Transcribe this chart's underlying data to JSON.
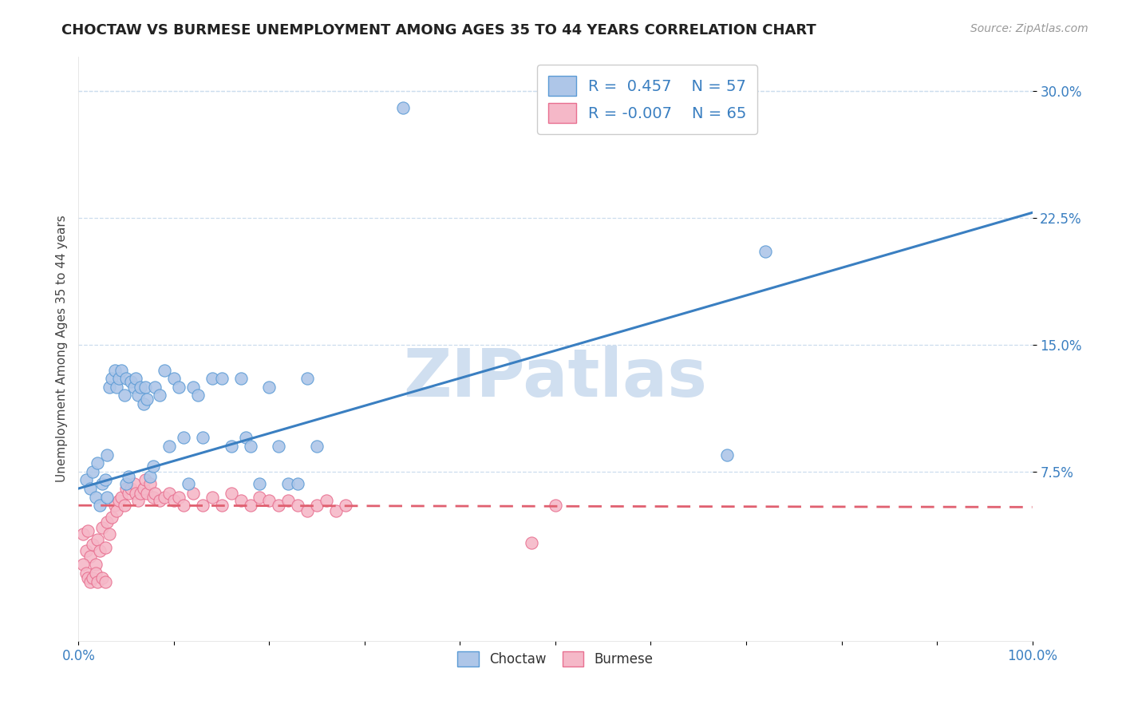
{
  "title": "CHOCTAW VS BURMESE UNEMPLOYMENT AMONG AGES 35 TO 44 YEARS CORRELATION CHART",
  "source": "Source: ZipAtlas.com",
  "ylabel": "Unemployment Among Ages 35 to 44 years",
  "xlim": [
    0,
    1.0
  ],
  "ylim": [
    -0.025,
    0.32
  ],
  "ytick_positions": [
    0.075,
    0.15,
    0.225,
    0.3
  ],
  "yticklabels": [
    "7.5%",
    "15.0%",
    "22.5%",
    "30.0%"
  ],
  "choctaw_color": "#aec6e8",
  "burmese_color": "#f5b8c8",
  "choctaw_edge_color": "#5b9bd5",
  "burmese_edge_color": "#e87090",
  "choctaw_line_color": "#3a7fc1",
  "burmese_line_color": "#e06070",
  "choctaw_R": 0.457,
  "choctaw_N": 57,
  "burmese_R": -0.007,
  "burmese_N": 65,
  "watermark": "ZIPatlas",
  "watermark_color": "#d0dff0",
  "choctaw_line_x0": 0.0,
  "choctaw_line_y0": 0.065,
  "choctaw_line_x1": 1.0,
  "choctaw_line_y1": 0.228,
  "burmese_line_x0": 0.0,
  "burmese_line_y0": 0.055,
  "burmese_line_x1": 1.0,
  "burmese_line_y1": 0.054,
  "choctaw_x": [
    0.008,
    0.012,
    0.015,
    0.018,
    0.02,
    0.022,
    0.025,
    0.028,
    0.03,
    0.03,
    0.032,
    0.035,
    0.038,
    0.04,
    0.042,
    0.045,
    0.048,
    0.05,
    0.05,
    0.052,
    0.055,
    0.058,
    0.06,
    0.062,
    0.065,
    0.068,
    0.07,
    0.072,
    0.075,
    0.078,
    0.08,
    0.085,
    0.09,
    0.095,
    0.1,
    0.105,
    0.11,
    0.115,
    0.12,
    0.125,
    0.13,
    0.14,
    0.15,
    0.16,
    0.17,
    0.175,
    0.18,
    0.19,
    0.2,
    0.21,
    0.22,
    0.23,
    0.24,
    0.25,
    0.68,
    0.72,
    0.34
  ],
  "choctaw_y": [
    0.07,
    0.065,
    0.075,
    0.06,
    0.08,
    0.055,
    0.068,
    0.07,
    0.085,
    0.06,
    0.125,
    0.13,
    0.135,
    0.125,
    0.13,
    0.135,
    0.12,
    0.13,
    0.068,
    0.072,
    0.128,
    0.125,
    0.13,
    0.12,
    0.125,
    0.115,
    0.125,
    0.118,
    0.072,
    0.078,
    0.125,
    0.12,
    0.135,
    0.09,
    0.13,
    0.125,
    0.095,
    0.068,
    0.125,
    0.12,
    0.095,
    0.13,
    0.13,
    0.09,
    0.13,
    0.095,
    0.09,
    0.068,
    0.125,
    0.09,
    0.068,
    0.068,
    0.13,
    0.09,
    0.085,
    0.205,
    0.29
  ],
  "burmese_x": [
    0.005,
    0.008,
    0.01,
    0.012,
    0.015,
    0.018,
    0.02,
    0.022,
    0.025,
    0.028,
    0.03,
    0.032,
    0.035,
    0.038,
    0.04,
    0.042,
    0.045,
    0.048,
    0.05,
    0.052,
    0.055,
    0.058,
    0.06,
    0.062,
    0.065,
    0.068,
    0.07,
    0.072,
    0.075,
    0.078,
    0.08,
    0.085,
    0.09,
    0.095,
    0.1,
    0.105,
    0.11,
    0.12,
    0.13,
    0.14,
    0.15,
    0.16,
    0.17,
    0.18,
    0.19,
    0.2,
    0.21,
    0.22,
    0.23,
    0.24,
    0.25,
    0.26,
    0.27,
    0.28,
    0.005,
    0.008,
    0.01,
    0.012,
    0.015,
    0.018,
    0.02,
    0.025,
    0.028,
    0.5,
    0.475
  ],
  "burmese_y": [
    0.038,
    0.028,
    0.04,
    0.025,
    0.032,
    0.02,
    0.035,
    0.028,
    0.042,
    0.03,
    0.045,
    0.038,
    0.048,
    0.055,
    0.052,
    0.058,
    0.06,
    0.055,
    0.065,
    0.062,
    0.065,
    0.068,
    0.062,
    0.058,
    0.062,
    0.065,
    0.07,
    0.062,
    0.068,
    0.06,
    0.062,
    0.058,
    0.06,
    0.062,
    0.058,
    0.06,
    0.055,
    0.062,
    0.055,
    0.06,
    0.055,
    0.062,
    0.058,
    0.055,
    0.06,
    0.058,
    0.055,
    0.058,
    0.055,
    0.052,
    0.055,
    0.058,
    0.052,
    0.055,
    0.02,
    0.015,
    0.012,
    0.01,
    0.012,
    0.015,
    0.01,
    0.012,
    0.01,
    0.055,
    0.033
  ]
}
